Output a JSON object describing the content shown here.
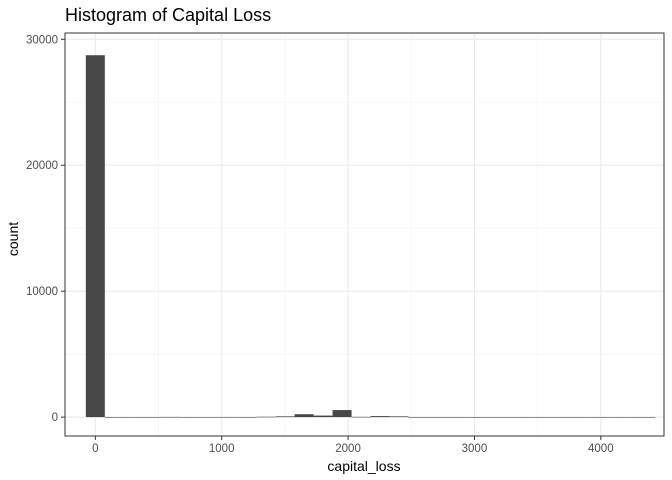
{
  "chart_data": {
    "type": "bar",
    "title": "Histogram of Capital Loss",
    "xlabel": "capital_loss",
    "ylabel": "count",
    "xlim": [
      -240,
      4500
    ],
    "ylim": [
      -1500,
      30500
    ],
    "bin_width": 150.2,
    "x_ticks": [
      0,
      1000,
      2000,
      3000,
      4000
    ],
    "y_ticks": [
      0,
      10000,
      20000,
      30000
    ],
    "grid": true,
    "bins": [
      {
        "x": 0,
        "count": 28735
      },
      {
        "x": 150.2,
        "count": 0
      },
      {
        "x": 300.4,
        "count": 0
      },
      {
        "x": 450.6,
        "count": 3
      },
      {
        "x": 600.8,
        "count": 15
      },
      {
        "x": 751,
        "count": 8
      },
      {
        "x": 901.2,
        "count": 4
      },
      {
        "x": 1051.4,
        "count": 10
      },
      {
        "x": 1201.6,
        "count": 5
      },
      {
        "x": 1351.8,
        "count": 30
      },
      {
        "x": 1502,
        "count": 60
      },
      {
        "x": 1652.2,
        "count": 230
      },
      {
        "x": 1802.4,
        "count": 120
      },
      {
        "x": 1952.6,
        "count": 560
      },
      {
        "x": 2102.8,
        "count": 20
      },
      {
        "x": 2253,
        "count": 80
      },
      {
        "x": 2403.2,
        "count": 60
      },
      {
        "x": 2553.4,
        "count": 6
      },
      {
        "x": 2703.6,
        "count": 2
      },
      {
        "x": 2853.8,
        "count": 3
      },
      {
        "x": 3004,
        "count": 0
      },
      {
        "x": 3154.2,
        "count": 0
      },
      {
        "x": 3304.4,
        "count": 0
      },
      {
        "x": 3454.6,
        "count": 0
      },
      {
        "x": 3604.8,
        "count": 0
      },
      {
        "x": 3755,
        "count": 2
      },
      {
        "x": 3905.2,
        "count": 0
      },
      {
        "x": 4055.4,
        "count": 0
      },
      {
        "x": 4205.6,
        "count": 0
      },
      {
        "x": 4355.8,
        "count": 2
      }
    ],
    "colors": {
      "bar": "#474747",
      "panel_border": "#333333",
      "grid_major": "#ebebeb",
      "grid_minor": "#f5f5f5",
      "background": "#ffffff"
    }
  }
}
